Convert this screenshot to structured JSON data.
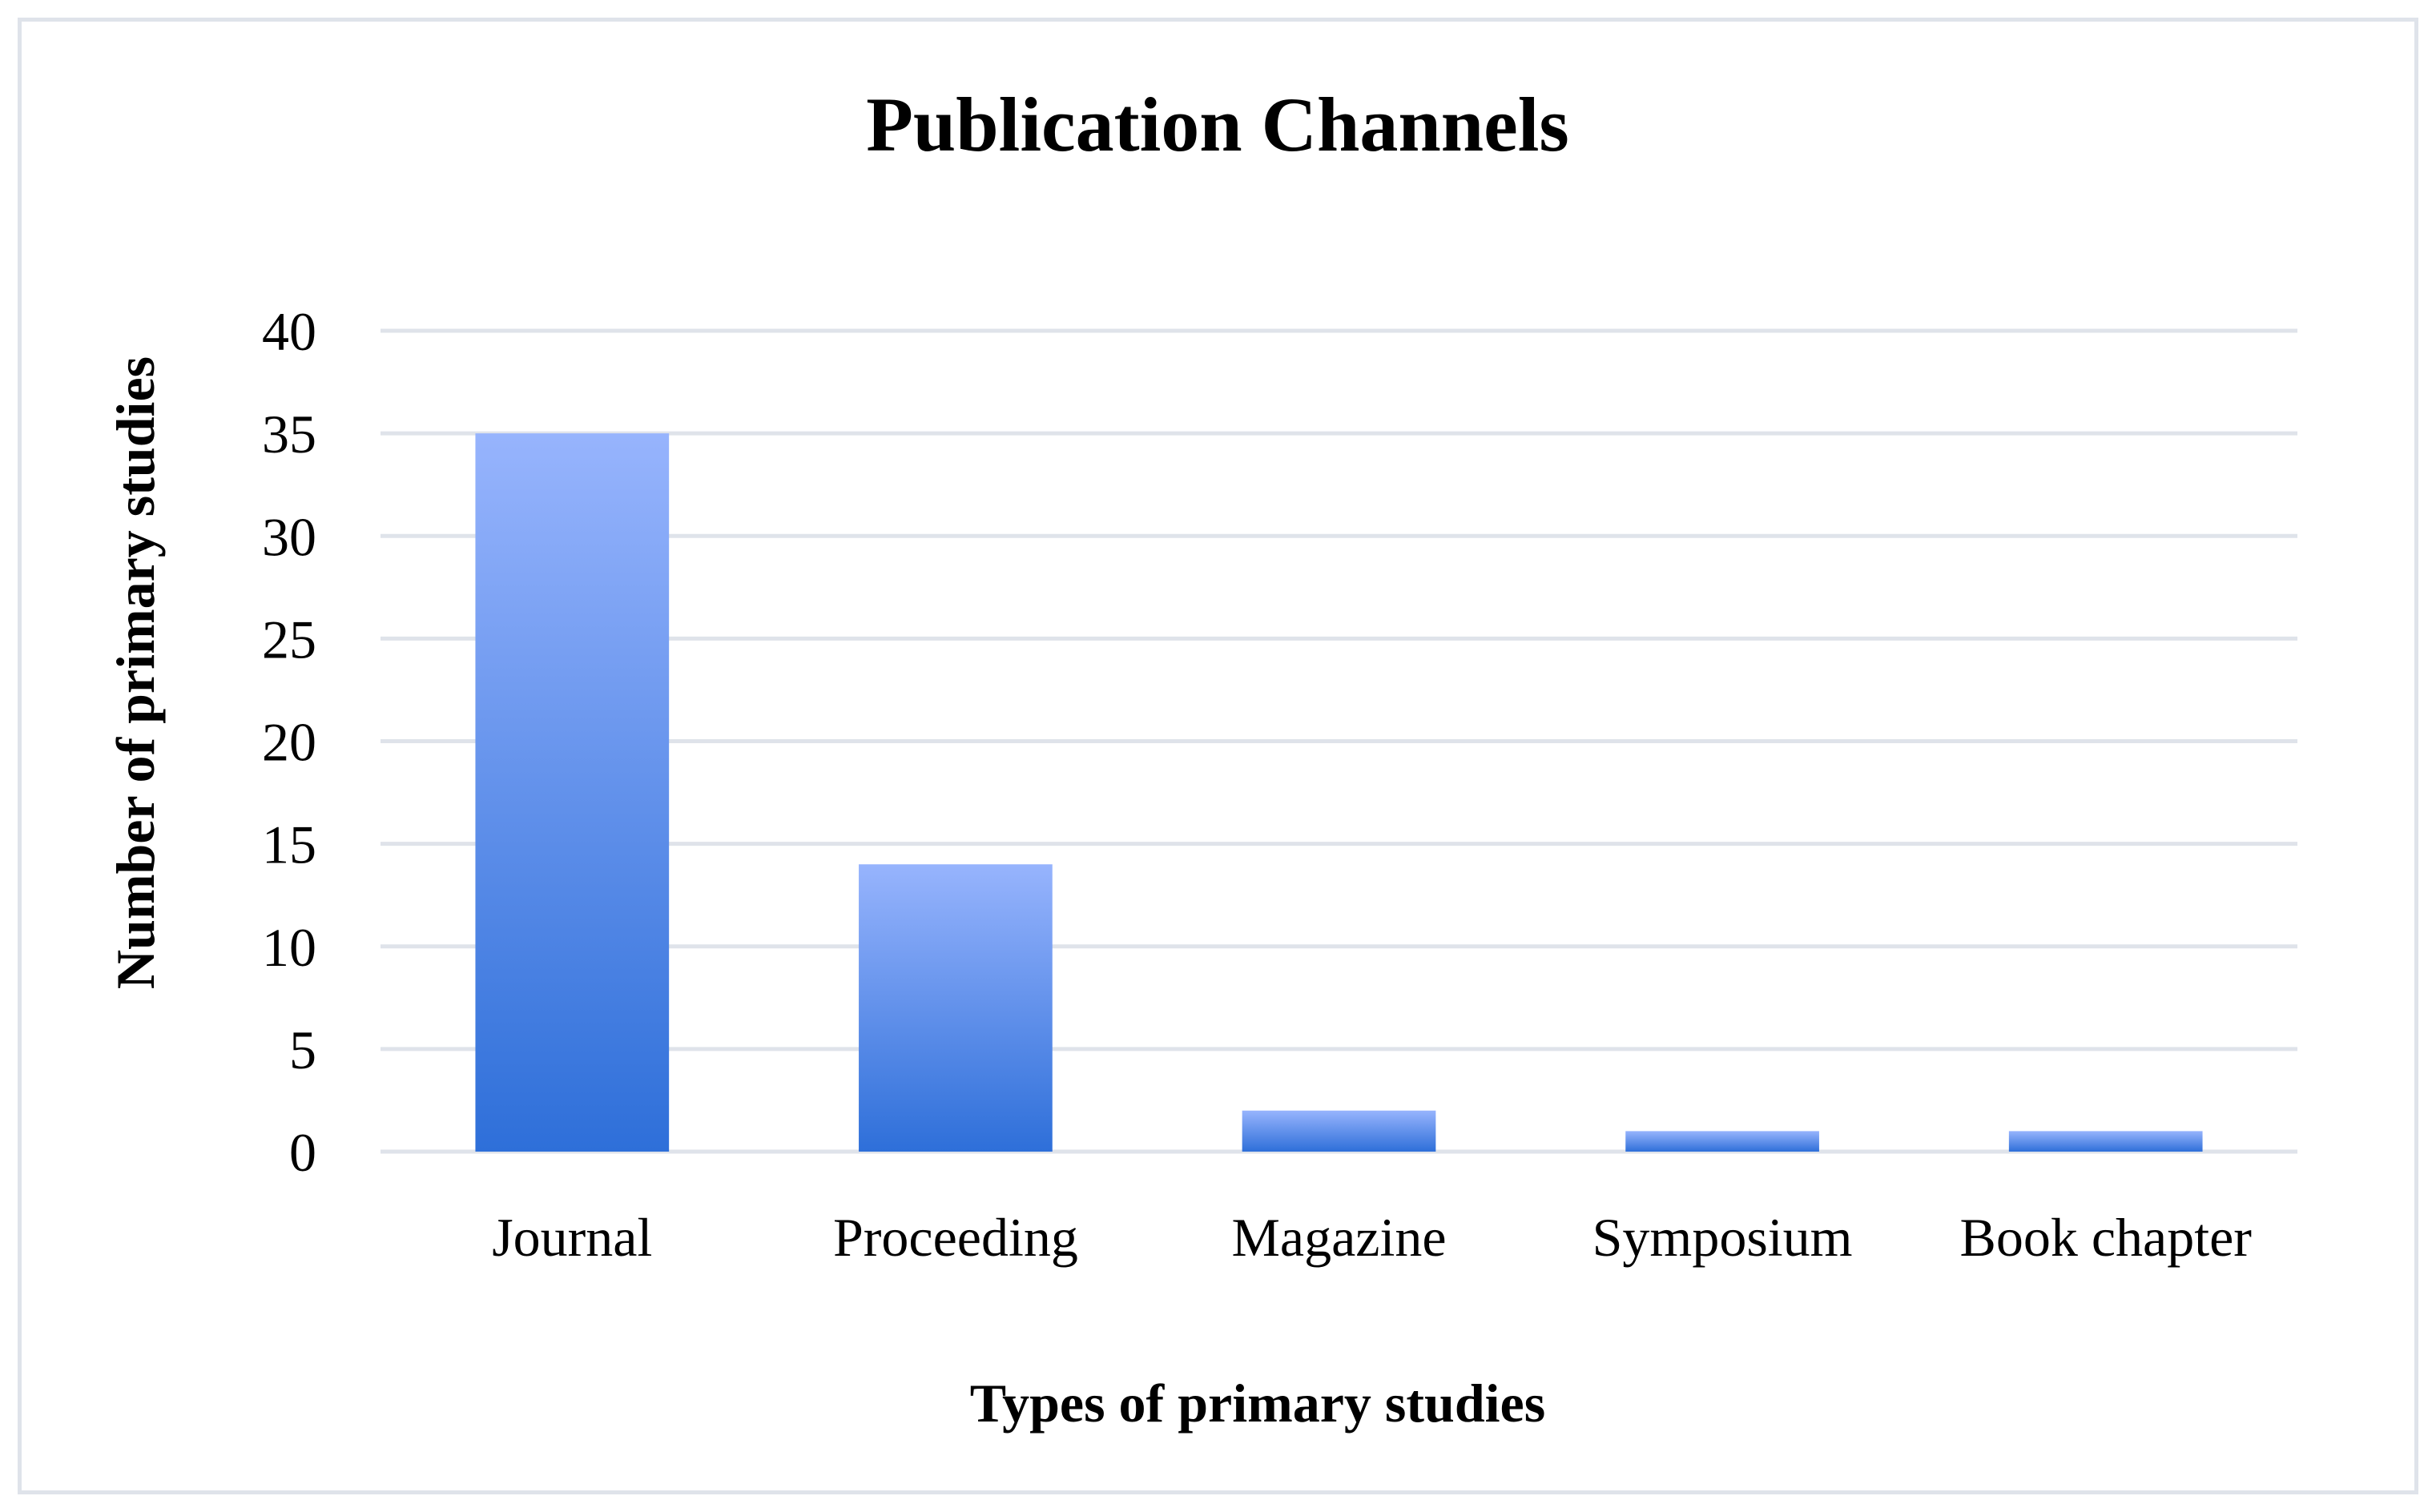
{
  "chart_data": {
    "type": "bar",
    "title": "Publication Channels",
    "xlabel": "Types of primary studies",
    "ylabel": "Number of primary studies",
    "categories": [
      "Journal",
      "Proceeding",
      "Magazine",
      "Symposium",
      "Book chapter"
    ],
    "values": [
      35,
      14,
      2,
      1,
      1
    ],
    "ylim": [
      0,
      40
    ],
    "yticks": [
      0,
      5,
      10,
      15,
      20,
      25,
      30,
      35,
      40
    ],
    "grid": true,
    "legend": "none",
    "colors": {
      "bar_top": "#97b4fd",
      "bar_bottom": "#2e6fd9",
      "grid": "#dfe3ea",
      "frame": "#dfe3ea",
      "text": "#000000"
    }
  }
}
